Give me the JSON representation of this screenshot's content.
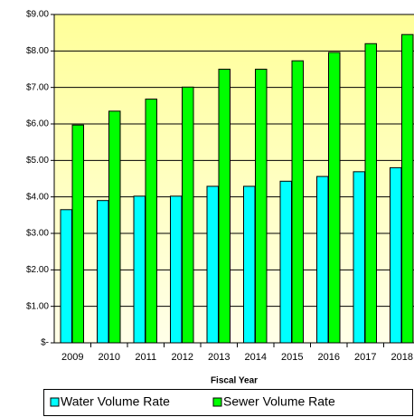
{
  "chart_data": {
    "type": "bar",
    "categories": [
      "2009",
      "2010",
      "2011",
      "2012",
      "2013",
      "2014",
      "2015",
      "2016",
      "2017",
      "2018"
    ],
    "series": [
      {
        "name": "Water Volume Rate",
        "color": "#00ffff",
        "values": [
          3.65,
          3.9,
          4.02,
          4.02,
          4.29,
          4.29,
          4.43,
          4.56,
          4.69,
          4.8
        ]
      },
      {
        "name": "Sewer Volume Rate",
        "color": "#00ff00",
        "values": [
          5.97,
          6.35,
          6.68,
          7.01,
          7.5,
          7.5,
          7.73,
          7.96,
          8.2,
          8.45
        ]
      }
    ],
    "x_label": "Fiscal Year",
    "ylim": [
      0,
      9
    ],
    "yticks": [
      {
        "value": 0,
        "label": "$-"
      },
      {
        "value": 1,
        "label": "$1.00"
      },
      {
        "value": 2,
        "label": "$2.00"
      },
      {
        "value": 3,
        "label": "$3.00"
      },
      {
        "value": 4,
        "label": "$4.00"
      },
      {
        "value": 5,
        "label": "$5.00"
      },
      {
        "value": 6,
        "label": "$6.00"
      },
      {
        "value": 7,
        "label": "$7.00"
      },
      {
        "value": 8,
        "label": "$8.00"
      },
      {
        "value": 9,
        "label": "$9.00"
      }
    ],
    "grid": true,
    "legend": "bottom"
  }
}
